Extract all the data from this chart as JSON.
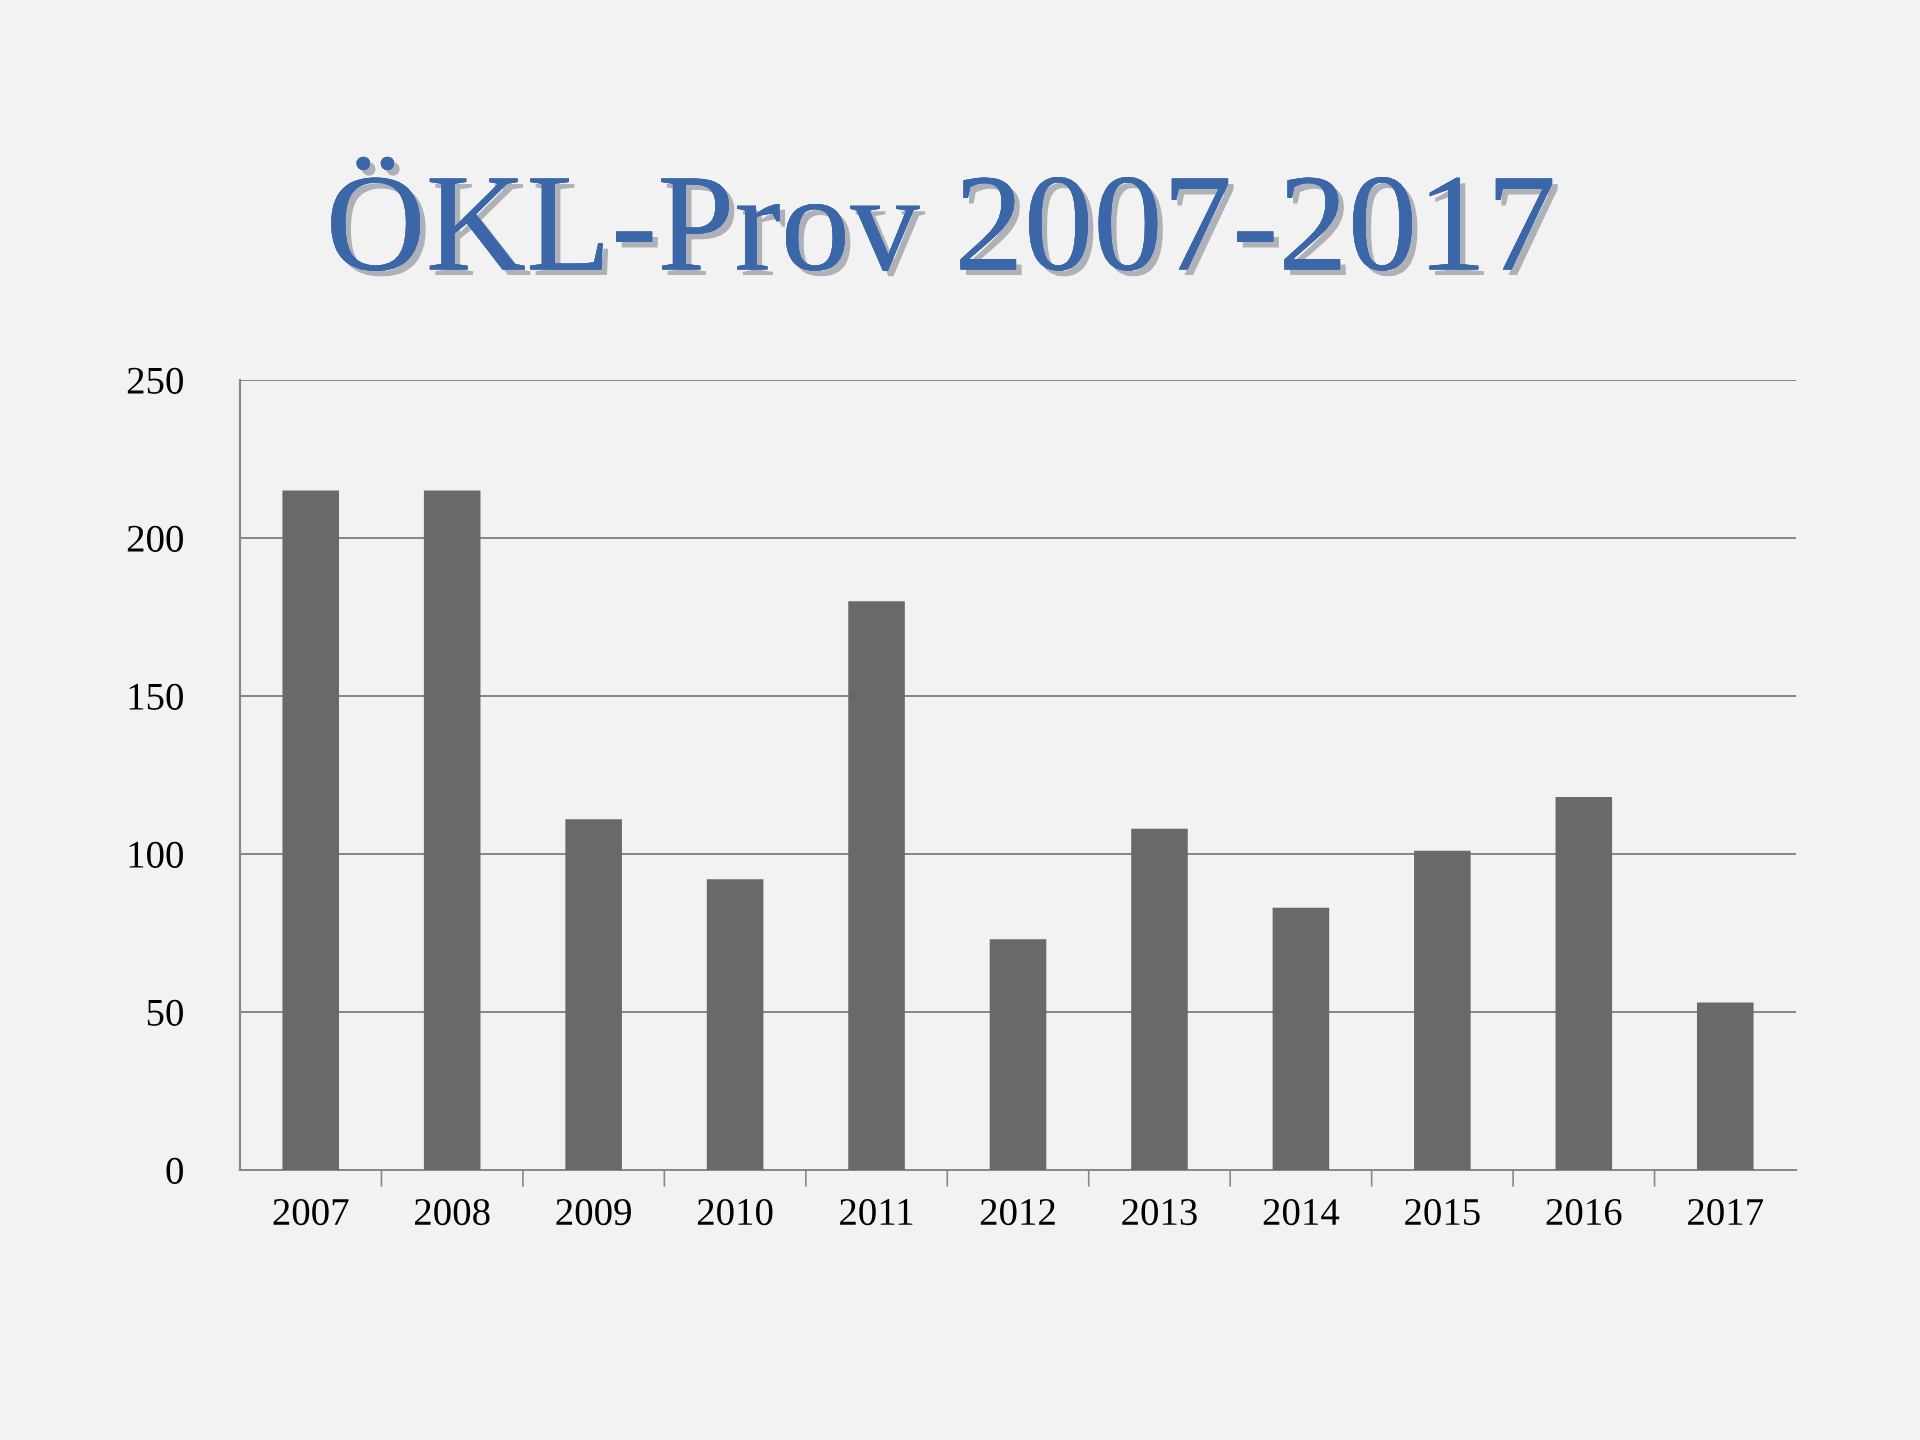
{
  "chart_data": {
    "type": "bar",
    "title": "ÖKL-Prov 2007-2017",
    "categories": [
      "2007",
      "2008",
      "2009",
      "2010",
      "2011",
      "2012",
      "2013",
      "2014",
      "2015",
      "2016",
      "2017"
    ],
    "values": [
      215,
      215,
      111,
      92,
      180,
      73,
      108,
      83,
      101,
      118,
      53
    ],
    "color": "#696969",
    "ylim": [
      0,
      250
    ],
    "yticks": [
      0,
      50,
      100,
      150,
      200,
      250
    ],
    "grid": "y"
  }
}
